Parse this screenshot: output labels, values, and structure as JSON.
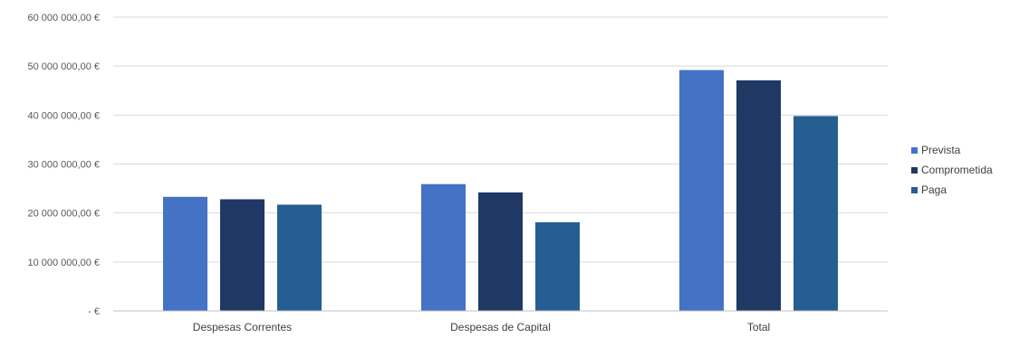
{
  "chart_data": {
    "type": "bar",
    "categories": [
      "Despesas Correntes",
      "Despesas de Capital",
      "Total"
    ],
    "series": [
      {
        "name": "Prevista",
        "color": "#4472c4",
        "values": [
          23300000,
          25900000,
          49200000
        ]
      },
      {
        "name": "Comprometida",
        "color": "#203864",
        "values": [
          22800000,
          24200000,
          47100000
        ]
      },
      {
        "name": "Paga",
        "color": "#255e91",
        "values": [
          21700000,
          18100000,
          39800000
        ]
      }
    ],
    "y_ticks": [
      "- €",
      "10 000 000,00 €",
      "20 000 000,00 €",
      "30 000 000,00 €",
      "40 000 000,00 €",
      "50 000 000,00 €",
      "60 000 000,00 €"
    ],
    "ylim": [
      0,
      60000000
    ],
    "grid": true,
    "legend_position": "right"
  }
}
